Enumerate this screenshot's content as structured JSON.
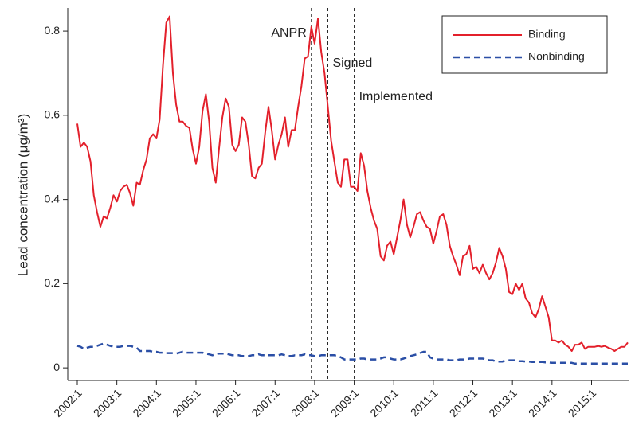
{
  "chart_data": {
    "type": "line",
    "ylabel": "Lead concentration (μg/m³)",
    "categories": [
      "2002:1",
      null,
      null,
      null,
      null,
      null,
      null,
      null,
      null,
      null,
      null,
      null,
      "2003:1",
      null,
      null,
      null,
      null,
      null,
      null,
      null,
      null,
      null,
      null,
      null,
      "2004:1",
      null,
      null,
      null,
      null,
      null,
      null,
      null,
      null,
      null,
      null,
      null,
      "2005:1",
      null,
      null,
      null,
      null,
      null,
      null,
      null,
      null,
      null,
      null,
      null,
      "2006:1",
      null,
      null,
      null,
      null,
      null,
      null,
      null,
      null,
      null,
      null,
      null,
      "2007:1",
      null,
      null,
      null,
      null,
      null,
      null,
      null,
      null,
      null,
      null,
      null,
      "2008:1",
      null,
      null,
      null,
      null,
      null,
      null,
      null,
      null,
      null,
      null,
      null,
      "2009:1",
      null,
      null,
      null,
      null,
      null,
      null,
      null,
      null,
      null,
      null,
      null,
      "2010:1",
      null,
      null,
      null,
      null,
      null,
      null,
      null,
      null,
      null,
      null,
      null,
      "2011:1",
      null,
      null,
      null,
      null,
      null,
      null,
      null,
      null,
      null,
      null,
      null,
      "2012:1",
      null,
      null,
      null,
      null,
      null,
      null,
      null,
      null,
      null,
      null,
      null,
      "2013:1",
      null,
      null,
      null,
      null,
      null,
      null,
      null,
      null,
      null,
      null,
      null,
      "2014:1",
      null,
      null,
      null,
      null,
      null,
      null,
      null,
      null,
      null,
      null,
      null,
      "2015:1",
      null,
      null,
      null,
      null,
      null,
      null,
      null,
      null,
      null,
      null,
      null
    ],
    "series": [
      {
        "name": "Binding",
        "color": "#e3202b",
        "dash": false,
        "values": [
          0.58,
          0.525,
          0.535,
          0.525,
          0.49,
          0.41,
          0.37,
          0.335,
          0.36,
          0.355,
          0.38,
          0.41,
          0.395,
          0.42,
          0.43,
          0.435,
          0.415,
          0.385,
          0.44,
          0.435,
          0.47,
          0.495,
          0.545,
          0.555,
          0.545,
          0.59,
          0.72,
          0.82,
          0.835,
          0.7,
          0.625,
          0.585,
          0.585,
          0.575,
          0.57,
          0.52,
          0.485,
          0.525,
          0.61,
          0.65,
          0.585,
          0.475,
          0.44,
          0.52,
          0.595,
          0.64,
          0.62,
          0.53,
          0.515,
          0.53,
          0.595,
          0.585,
          0.53,
          0.455,
          0.45,
          0.475,
          0.485,
          0.56,
          0.62,
          0.565,
          0.495,
          0.53,
          0.555,
          0.595,
          0.525,
          0.565,
          0.565,
          0.62,
          0.67,
          0.735,
          0.74,
          0.81,
          0.77,
          0.83,
          0.75,
          0.7,
          0.62,
          0.54,
          0.49,
          0.44,
          0.43,
          0.495,
          0.495,
          0.43,
          0.43,
          0.42,
          0.51,
          0.48,
          0.42,
          0.38,
          0.35,
          0.33,
          0.265,
          0.255,
          0.29,
          0.3,
          0.27,
          0.31,
          0.35,
          0.4,
          0.34,
          0.31,
          0.335,
          0.365,
          0.37,
          0.35,
          0.335,
          0.33,
          0.295,
          0.325,
          0.36,
          0.365,
          0.34,
          0.29,
          0.265,
          0.245,
          0.22,
          0.265,
          0.27,
          0.29,
          0.235,
          0.24,
          0.225,
          0.245,
          0.225,
          0.21,
          0.225,
          0.25,
          0.285,
          0.265,
          0.235,
          0.18,
          0.175,
          0.2,
          0.185,
          0.2,
          0.165,
          0.155,
          0.13,
          0.12,
          0.14,
          0.17,
          0.145,
          0.12,
          0.065,
          0.065,
          0.06,
          0.065,
          0.055,
          0.05,
          0.04,
          0.055,
          0.055,
          0.06,
          0.045,
          0.05,
          0.05,
          0.05,
          0.052,
          0.05,
          0.052,
          0.048,
          0.045,
          0.04,
          0.045,
          0.05,
          0.05,
          0.06
        ]
      },
      {
        "name": "Nonbinding",
        "color": "#2b4fa6",
        "dash": true,
        "values": [
          0.052,
          0.05,
          0.045,
          0.048,
          0.05,
          0.05,
          0.052,
          0.055,
          0.058,
          0.055,
          0.052,
          0.05,
          0.05,
          0.05,
          0.052,
          0.052,
          0.052,
          0.05,
          0.048,
          0.04,
          0.04,
          0.04,
          0.04,
          0.038,
          0.038,
          0.036,
          0.036,
          0.035,
          0.035,
          0.035,
          0.034,
          0.036,
          0.038,
          0.036,
          0.036,
          0.036,
          0.036,
          0.036,
          0.036,
          0.034,
          0.032,
          0.03,
          0.032,
          0.034,
          0.034,
          0.034,
          0.032,
          0.03,
          0.03,
          0.03,
          0.028,
          0.028,
          0.028,
          0.03,
          0.03,
          0.032,
          0.03,
          0.03,
          0.03,
          0.03,
          0.03,
          0.03,
          0.032,
          0.03,
          0.028,
          0.028,
          0.03,
          0.03,
          0.03,
          0.032,
          0.03,
          0.03,
          0.028,
          0.028,
          0.03,
          0.03,
          0.03,
          0.03,
          0.03,
          0.028,
          0.025,
          0.02,
          0.02,
          0.02,
          0.02,
          0.02,
          0.022,
          0.022,
          0.02,
          0.02,
          0.02,
          0.02,
          0.022,
          0.025,
          0.025,
          0.022,
          0.02,
          0.02,
          0.02,
          0.022,
          0.025,
          0.028,
          0.03,
          0.032,
          0.035,
          0.038,
          0.038,
          0.025,
          0.022,
          0.02,
          0.02,
          0.02,
          0.02,
          0.018,
          0.018,
          0.018,
          0.02,
          0.02,
          0.02,
          0.022,
          0.022,
          0.022,
          0.022,
          0.022,
          0.02,
          0.018,
          0.018,
          0.015,
          0.015,
          0.015,
          0.018,
          0.018,
          0.018,
          0.018,
          0.016,
          0.016,
          0.015,
          0.015,
          0.014,
          0.014,
          0.014,
          0.014,
          0.013,
          0.013,
          0.012,
          0.012,
          0.012,
          0.012,
          0.012,
          0.012,
          0.012,
          0.01,
          0.01,
          0.01,
          0.01,
          0.01,
          0.01,
          0.01,
          0.01,
          0.01,
          0.01,
          0.01,
          0.01,
          0.01,
          0.01,
          0.01,
          0.01,
          0.01
        ]
      }
    ],
    "annotations": [
      {
        "text": "ANPR",
        "x": 71
      },
      {
        "text": "Signed",
        "x": 76
      },
      {
        "text": "Implemented",
        "x": 84
      }
    ],
    "ylim": [
      -0.03,
      0.855
    ],
    "yticks": [
      0,
      0.2,
      0.4,
      0.6,
      0.8
    ],
    "legend": "upper right"
  }
}
